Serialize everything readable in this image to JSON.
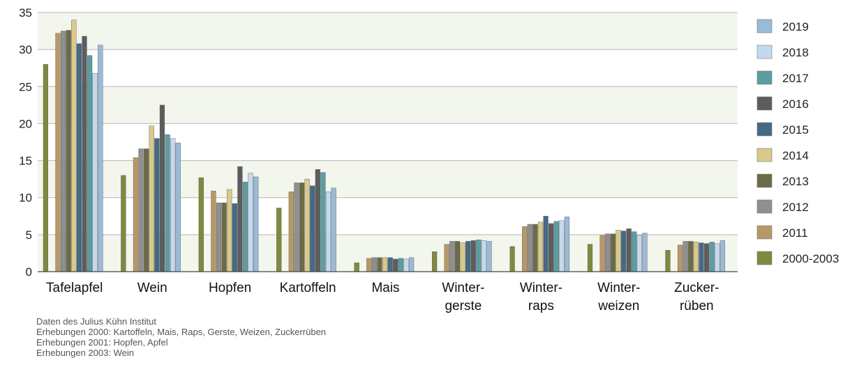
{
  "chart_data": {
    "type": "bar",
    "ylim": [
      0,
      35
    ],
    "yticks": [
      0,
      5,
      10,
      15,
      20,
      25,
      30,
      35
    ],
    "grid": true,
    "legend_placement": "right",
    "categories": [
      [
        "Tafelapfel"
      ],
      [
        "Wein"
      ],
      [
        "Hopfen"
      ],
      [
        "Kartoffeln"
      ],
      [
        "Mais"
      ],
      [
        "Winter-",
        "gerste"
      ],
      [
        "Winter-",
        "raps"
      ],
      [
        "Winter-",
        "weizen"
      ],
      [
        "Zucker-",
        "rüben"
      ]
    ],
    "series": [
      {
        "name": "2000-2003",
        "color": "#7f8a3f",
        "values": [
          28.0,
          13.0,
          12.7,
          8.6,
          1.2,
          2.7,
          3.4,
          3.7,
          2.9
        ]
      },
      {
        "name": "2011",
        "color": "#b99867",
        "values": [
          32.2,
          15.4,
          10.9,
          10.8,
          1.8,
          3.7,
          6.1,
          4.9,
          3.6
        ]
      },
      {
        "name": "2012",
        "color": "#8f8f8f",
        "values": [
          32.5,
          16.6,
          9.3,
          12.0,
          1.9,
          4.1,
          6.4,
          5.1,
          4.1
        ]
      },
      {
        "name": "2013",
        "color": "#6b6b48",
        "values": [
          32.6,
          16.6,
          9.3,
          12.0,
          1.9,
          4.1,
          6.4,
          5.1,
          4.1
        ]
      },
      {
        "name": "2014",
        "color": "#d9c98a",
        "values": [
          34.0,
          19.7,
          11.1,
          12.5,
          1.9,
          3.9,
          6.7,
          5.6,
          4.0
        ]
      },
      {
        "name": "2015",
        "color": "#456a86",
        "values": [
          30.8,
          18.0,
          9.2,
          11.6,
          1.9,
          4.1,
          7.5,
          5.5,
          3.9
        ]
      },
      {
        "name": "2016",
        "color": "#5d5d5d",
        "values": [
          31.8,
          22.5,
          14.2,
          13.8,
          1.7,
          4.2,
          6.5,
          5.8,
          3.8
        ]
      },
      {
        "name": "2017",
        "color": "#5c9da2",
        "values": [
          29.2,
          18.5,
          12.1,
          13.4,
          1.8,
          4.3,
          6.8,
          5.4,
          4.0
        ]
      },
      {
        "name": "2018",
        "color": "#c5d9ee",
        "values": [
          26.8,
          18.0,
          13.3,
          10.8,
          1.7,
          4.2,
          6.9,
          4.9,
          3.8
        ]
      },
      {
        "name": "2019",
        "color": "#9bbad6",
        "values": [
          30.6,
          17.4,
          12.8,
          11.3,
          1.9,
          4.1,
          7.4,
          5.2,
          4.2
        ]
      }
    ],
    "legend_order": [
      "2019",
      "2018",
      "2017",
      "2016",
      "2015",
      "2014",
      "2013",
      "2012",
      "2011",
      "2000-2003"
    ]
  },
  "notes": [
    "Daten des Julius Kühn Institut",
    "Erhebungen 2000: Kartoffeln, Mais, Raps, Gerste, Weizen, Zuckerrüben",
    "Erhebungen 2001: Hopfen, Apfel",
    "Erhebungen 2003: Wein"
  ]
}
